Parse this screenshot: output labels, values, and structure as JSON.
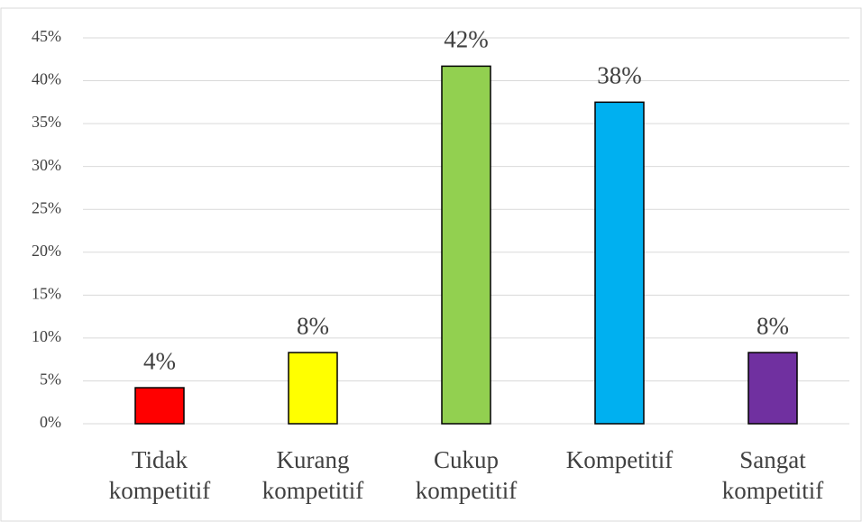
{
  "chart_data": {
    "type": "bar",
    "categories": [
      "Tidak kompetitif",
      "Kurang kompetitif",
      "Cukup kompetitif",
      "Kompetitif",
      "Sangat kompetitif"
    ],
    "values": [
      4.2,
      8.3,
      41.7,
      37.5,
      8.3
    ],
    "value_labels": [
      "4%",
      "8%",
      "42%",
      "38%",
      "8%"
    ],
    "colors": [
      "#ff0000",
      "#ffff00",
      "#92d050",
      "#00b0f0",
      "#7030a0"
    ],
    "ylim": [
      0,
      45
    ],
    "yticks": [
      {
        "value": 0,
        "label": "0%"
      },
      {
        "value": 5,
        "label": "5%"
      },
      {
        "value": 10,
        "label": "10%"
      },
      {
        "value": 15,
        "label": "15%"
      },
      {
        "value": 20,
        "label": "20%"
      },
      {
        "value": 25,
        "label": "25%"
      },
      {
        "value": 30,
        "label": "30%"
      },
      {
        "value": 35,
        "label": "35%"
      },
      {
        "value": 40,
        "label": "40%"
      },
      {
        "value": 45,
        "label": "45%"
      }
    ],
    "grid": true
  }
}
